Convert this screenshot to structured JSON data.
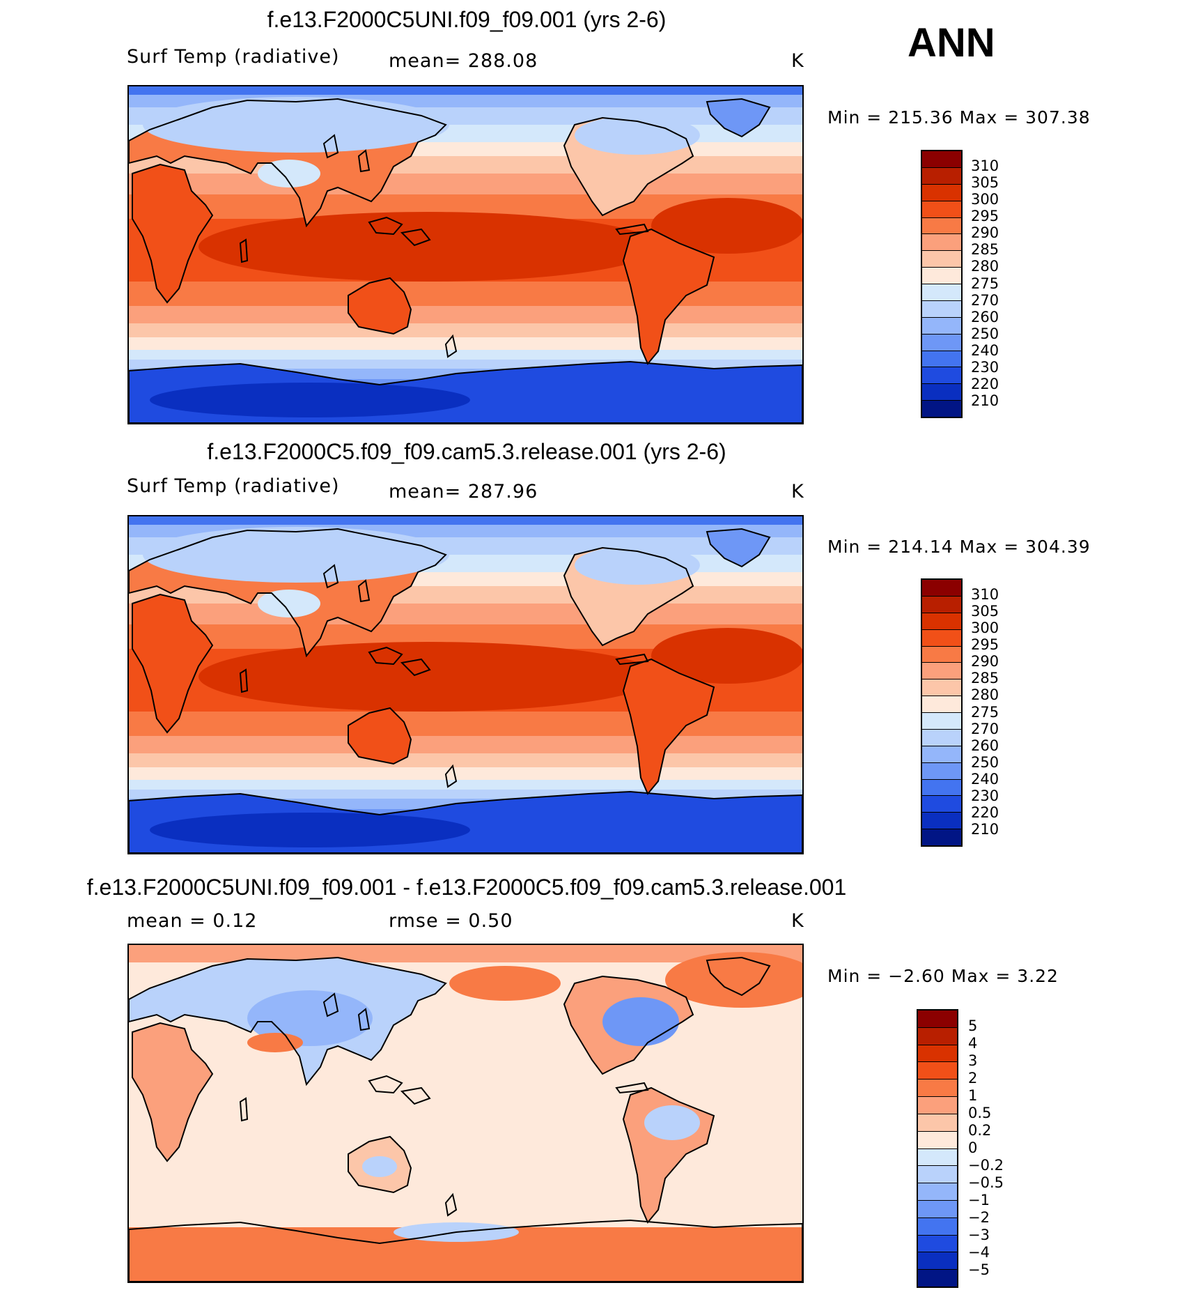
{
  "season": "ANN",
  "panels": [
    {
      "title": "f.e13.F2000C5UNI.f09_f09.001 (yrs 2-6)",
      "variable": "Surf Temp (radiative)",
      "stat1": "mean=  288.08",
      "stat2": "",
      "units": "K",
      "minmax": "Min  =  215.36  Max  =  307.38",
      "levels": [
        "310",
        "305",
        "300",
        "295",
        "290",
        "285",
        "280",
        "275",
        "270",
        "260",
        "250",
        "240",
        "230",
        "220",
        "210"
      ],
      "palette": [
        "#8b0000",
        "#b81f00",
        "#d93200",
        "#f15018",
        "#f87a45",
        "#fba07c",
        "#fcc6a9",
        "#fee9db",
        "#d4e8fb",
        "#b9d2fb",
        "#94b6fa",
        "#6e97f6",
        "#4374f0",
        "#1f4be0",
        "#0a2fc0",
        "#011585"
      ],
      "map_style": "full"
    },
    {
      "title": "f.e13.F2000C5.f09_f09.cam5.3.release.001 (yrs 2-6)",
      "variable": "Surf Temp (radiative)",
      "stat1": "mean=  287.96",
      "stat2": "",
      "units": "K",
      "minmax": "Min  =  214.14  Max  =  304.39",
      "levels": [
        "310",
        "305",
        "300",
        "295",
        "290",
        "285",
        "280",
        "275",
        "270",
        "260",
        "250",
        "240",
        "230",
        "220",
        "210"
      ],
      "palette": [
        "#8b0000",
        "#b81f00",
        "#d93200",
        "#f15018",
        "#f87a45",
        "#fba07c",
        "#fcc6a9",
        "#fee9db",
        "#d4e8fb",
        "#b9d2fb",
        "#94b6fa",
        "#6e97f6",
        "#4374f0",
        "#1f4be0",
        "#0a2fc0",
        "#011585"
      ],
      "map_style": "full"
    },
    {
      "title": "f.e13.F2000C5UNI.f09_f09.001 - f.e13.F2000C5.f09_f09.cam5.3.release.001",
      "variable": "",
      "stat1": "mean  =      0.12",
      "stat2": "rmse  =      0.50",
      "units": "K",
      "minmax": "Min  =     −2.60  Max  =      3.22",
      "levels": [
        "5",
        "4",
        "3",
        "2",
        "1",
        "0.5",
        "0.2",
        "0",
        "−0.2",
        "−0.5",
        "−1",
        "−2",
        "−3",
        "−4",
        "−5"
      ],
      "palette": [
        "#8b0000",
        "#b81f00",
        "#d93200",
        "#f15018",
        "#f87a45",
        "#fba07c",
        "#fcc6a9",
        "#fee9db",
        "#d4e8fb",
        "#b9d2fb",
        "#94b6fa",
        "#6e97f6",
        "#4374f0",
        "#1f4be0",
        "#0a2fc0",
        "#011585"
      ],
      "map_style": "diff"
    }
  ]
}
